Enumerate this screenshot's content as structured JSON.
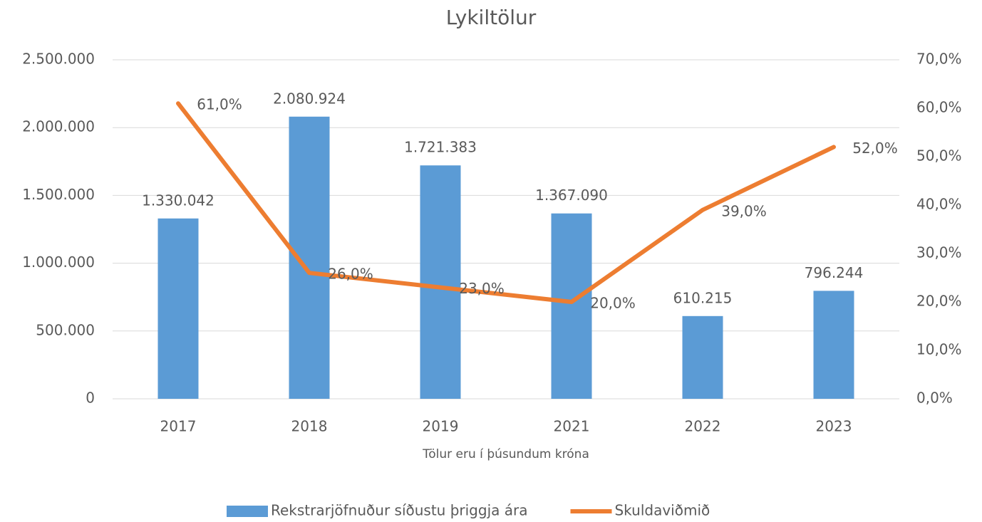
{
  "chart_data": {
    "type": "combo",
    "title": "Lykiltölur",
    "x_label": "Tölur eru í þúsundum króna",
    "categories": [
      "2017",
      "2018",
      "2019",
      "2021",
      "2022",
      "2023"
    ],
    "series": [
      {
        "name": "Rekstrarjöfnuður síðustu þriggja ára",
        "type": "bar",
        "color": "#5b9bd5",
        "values": [
          1330042,
          2080924,
          1721383,
          1367090,
          610215,
          796244
        ],
        "value_labels": [
          "1.330.042",
          "2.080.924",
          "1.721.383",
          "1.367.090",
          "610.215",
          "796.244"
        ]
      },
      {
        "name": "Skuldaviðmið",
        "type": "line",
        "axis": "y2",
        "color": "#ed7d31",
        "values": [
          61,
          26,
          23,
          20,
          39,
          52
        ],
        "value_labels": [
          "61,0%",
          "26,0%",
          "23,0%",
          "20,0%",
          "39,0%",
          "52,0%"
        ]
      }
    ],
    "ylim": [
      0,
      2500000
    ],
    "yticks": [
      0,
      {
        "value": 500000,
        "label": "500.000"
      },
      {
        "value": 1000000,
        "label": "1.000.000"
      },
      {
        "value": 1500000,
        "label": "1.500.000"
      },
      {
        "value": 2000000,
        "label": "2.000.000"
      },
      {
        "value": 2500000,
        "label": "2.500.000"
      }
    ],
    "y2lim": [
      0,
      70
    ],
    "y2ticks": [
      {
        "value": 0,
        "label": "0,0%"
      },
      {
        "value": 10,
        "label": "10,0%"
      },
      {
        "value": 20,
        "label": "20,0%"
      },
      {
        "value": 30,
        "label": "30,0%"
      },
      {
        "value": 40,
        "label": "40,0%"
      },
      {
        "value": 50,
        "label": "50,0%"
      },
      {
        "value": 60,
        "label": "60,0%"
      },
      {
        "value": 70,
        "label": "70,0%"
      }
    ],
    "grid": true,
    "legend": "bottom"
  }
}
